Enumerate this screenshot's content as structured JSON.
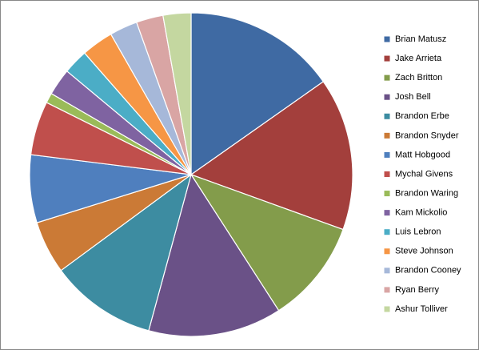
{
  "chart_data": {
    "type": "pie",
    "categories": [
      "Brian Matusz",
      "Jake Arrieta",
      "Zach Britton",
      "Josh Bell",
      "Brandon Erbe",
      "Brandon Snyder",
      "Matt Hobgood",
      "Mychal Givens",
      "Brandon Waring",
      "Kam Mickolio",
      "Luis Lebron",
      "Steve Johnson",
      "Brandon Cooney",
      "Ryan Berry",
      "Ashur Tolliver"
    ],
    "values": [
      15.3,
      15.3,
      10.4,
      13.4,
      10.7,
      5.3,
      6.8,
      5.4,
      1.0,
      2.7,
      2.5,
      3.2,
      2.8,
      2.7,
      2.8
    ],
    "colors": [
      "#3F6AA3",
      "#A33F3C",
      "#839C4B",
      "#6A5187",
      "#3D8CA1",
      "#CB7A36",
      "#4F7FBE",
      "#C04F4C",
      "#9ABB59",
      "#7F63A1",
      "#4BADC6",
      "#F69645",
      "#A6B8D9",
      "#D9A5A4",
      "#C4D7A0"
    ],
    "legend": "right"
  }
}
